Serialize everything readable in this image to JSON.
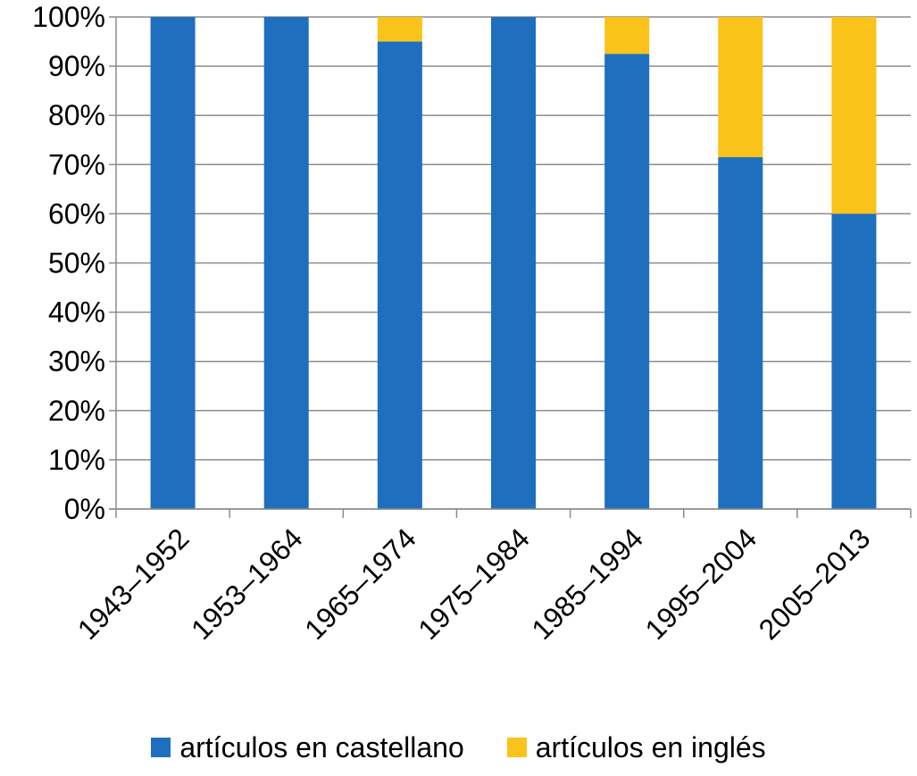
{
  "chart_data": {
    "type": "bar",
    "stacked": true,
    "categories": [
      "1943–1952",
      "1953–1964",
      "1965–1974",
      "1975–1984",
      "1985–1994",
      "1995–2004",
      "2005–2013"
    ],
    "series": [
      {
        "name": "artículos en castellano",
        "color": "#1f6fbf",
        "values": [
          100,
          100,
          95,
          100,
          92.5,
          71.5,
          60
        ]
      },
      {
        "name": "artículos en inglés",
        "color": "#f9c319",
        "values": [
          0,
          0,
          5,
          0,
          7.5,
          28.5,
          40
        ]
      }
    ],
    "yticks": [
      "0%",
      "10%",
      "20%",
      "30%",
      "40%",
      "50%",
      "60%",
      "70%",
      "80%",
      "90%",
      "100%"
    ],
    "ylim": [
      0,
      100
    ],
    "grid": true,
    "legend": "bottom"
  }
}
